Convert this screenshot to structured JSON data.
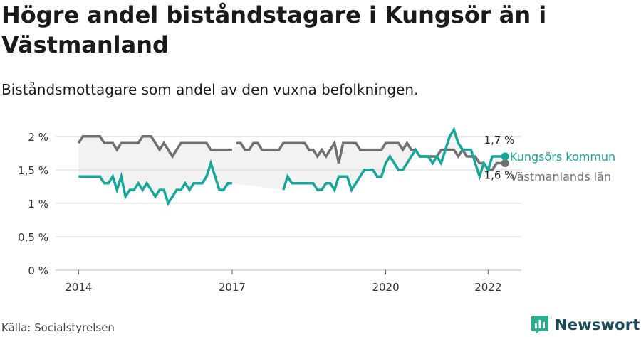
{
  "title": "Högre andel biståndstagare i Kungsör än i Västmanland",
  "subtitle": "Biståndsmottagare som andel av den vuxna befolkningen.",
  "source": "Källa: Socialstyrelsen",
  "brand": "Newsworthy",
  "colors": {
    "kungsor": "#16a79a",
    "vastmanland": "#707070",
    "band": "#f2f2f2",
    "grid": "#d9d9d9",
    "brand": "#1a4a5c",
    "brand_icon": "#2fae8f"
  },
  "chart_data": {
    "type": "line",
    "y_ticks": [
      {
        "value": 0,
        "label": "0 %"
      },
      {
        "value": 0.5,
        "label": "0,5 %"
      },
      {
        "value": 1,
        "label": "1 %"
      },
      {
        "value": 1.5,
        "label": "1,5 %"
      },
      {
        "value": 2,
        "label": "2 %"
      }
    ],
    "ylim": [
      0,
      2.2
    ],
    "x_ticks": [
      {
        "value": 2014,
        "label": "2014"
      },
      {
        "value": 2017,
        "label": "2017"
      },
      {
        "value": 2020,
        "label": "2020"
      },
      {
        "value": 2022,
        "label": "2022"
      }
    ],
    "xlim": [
      2013.55,
      2022.65
    ],
    "series": [
      {
        "name": "Kungsörs kommun",
        "color": "#16a79a",
        "end_label": "1,7 %",
        "points": [
          [
            2014.0,
            1.4
          ],
          [
            2014.083,
            1.4
          ],
          [
            2014.167,
            1.4
          ],
          [
            2014.25,
            1.4
          ],
          [
            2014.333,
            1.4
          ],
          [
            2014.417,
            1.4
          ],
          [
            2014.5,
            1.3
          ],
          [
            2014.583,
            1.3
          ],
          [
            2014.667,
            1.4
          ],
          [
            2014.75,
            1.2
          ],
          [
            2014.833,
            1.4
          ],
          [
            2014.917,
            1.1
          ],
          [
            2015.0,
            1.2
          ],
          [
            2015.083,
            1.2
          ],
          [
            2015.167,
            1.3
          ],
          [
            2015.25,
            1.2
          ],
          [
            2015.333,
            1.3
          ],
          [
            2015.417,
            1.2
          ],
          [
            2015.5,
            1.1
          ],
          [
            2015.583,
            1.2
          ],
          [
            2015.667,
            1.2
          ],
          [
            2015.75,
            1.0
          ],
          [
            2015.833,
            1.1
          ],
          [
            2015.917,
            1.2
          ],
          [
            2016.0,
            1.2
          ],
          [
            2016.083,
            1.3
          ],
          [
            2016.167,
            1.2
          ],
          [
            2016.25,
            1.3
          ],
          [
            2016.333,
            1.3
          ],
          [
            2016.417,
            1.3
          ],
          [
            2016.5,
            1.4
          ],
          [
            2016.583,
            1.6
          ],
          [
            2016.667,
            1.4
          ],
          [
            2016.75,
            1.2
          ],
          [
            2016.833,
            1.2
          ],
          [
            2016.917,
            1.3
          ],
          [
            2017.0,
            1.3
          ],
          null,
          [
            2018.0,
            1.2
          ],
          [
            2018.083,
            1.4
          ],
          [
            2018.167,
            1.3
          ],
          [
            2018.25,
            1.3
          ],
          [
            2018.333,
            1.3
          ],
          [
            2018.417,
            1.3
          ],
          [
            2018.5,
            1.3
          ],
          [
            2018.583,
            1.3
          ],
          [
            2018.667,
            1.2
          ],
          [
            2018.75,
            1.2
          ],
          [
            2018.833,
            1.3
          ],
          [
            2018.917,
            1.3
          ],
          [
            2019.0,
            1.2
          ],
          [
            2019.083,
            1.4
          ],
          [
            2019.167,
            1.4
          ],
          [
            2019.25,
            1.4
          ],
          [
            2019.333,
            1.2
          ],
          [
            2019.417,
            1.3
          ],
          [
            2019.5,
            1.4
          ],
          [
            2019.583,
            1.5
          ],
          [
            2019.667,
            1.5
          ],
          [
            2019.75,
            1.5
          ],
          [
            2019.833,
            1.4
          ],
          [
            2019.917,
            1.4
          ],
          [
            2020.0,
            1.6
          ],
          [
            2020.083,
            1.7
          ],
          [
            2020.167,
            1.6
          ],
          [
            2020.25,
            1.5
          ],
          [
            2020.333,
            1.5
          ],
          [
            2020.417,
            1.6
          ],
          [
            2020.5,
            1.7
          ],
          [
            2020.583,
            1.8
          ],
          [
            2020.667,
            1.7
          ],
          [
            2020.75,
            1.7
          ],
          [
            2020.833,
            1.7
          ],
          [
            2020.917,
            1.6
          ],
          [
            2021.0,
            1.7
          ],
          [
            2021.083,
            1.6
          ],
          [
            2021.167,
            1.8
          ],
          [
            2021.25,
            2.0
          ],
          [
            2021.333,
            2.1
          ],
          [
            2021.417,
            1.9
          ],
          [
            2021.5,
            1.8
          ],
          [
            2021.583,
            1.8
          ],
          [
            2021.667,
            1.8
          ],
          [
            2021.75,
            1.6
          ],
          [
            2021.833,
            1.4
          ],
          [
            2021.917,
            1.6
          ],
          [
            2022.0,
            1.5
          ],
          [
            2022.083,
            1.7
          ],
          [
            2022.167,
            1.7
          ],
          [
            2022.25,
            1.7
          ],
          [
            2022.333,
            1.7
          ]
        ]
      },
      {
        "name": "Västmanlands län",
        "color": "#707070",
        "end_label": "1,6 %",
        "points": [
          [
            2014.0,
            1.9
          ],
          [
            2014.083,
            2.0
          ],
          [
            2014.167,
            2.0
          ],
          [
            2014.25,
            2.0
          ],
          [
            2014.333,
            2.0
          ],
          [
            2014.417,
            2.0
          ],
          [
            2014.5,
            1.9
          ],
          [
            2014.583,
            1.9
          ],
          [
            2014.667,
            1.9
          ],
          [
            2014.75,
            1.8
          ],
          [
            2014.833,
            1.9
          ],
          [
            2014.917,
            1.9
          ],
          [
            2015.0,
            1.9
          ],
          [
            2015.083,
            1.9
          ],
          [
            2015.167,
            1.9
          ],
          [
            2015.25,
            2.0
          ],
          [
            2015.333,
            2.0
          ],
          [
            2015.417,
            2.0
          ],
          [
            2015.5,
            1.9
          ],
          [
            2015.583,
            1.8
          ],
          [
            2015.667,
            1.9
          ],
          [
            2015.75,
            1.8
          ],
          [
            2015.833,
            1.7
          ],
          [
            2015.917,
            1.8
          ],
          [
            2016.0,
            1.9
          ],
          [
            2016.083,
            1.9
          ],
          [
            2016.167,
            1.9
          ],
          [
            2016.25,
            1.9
          ],
          [
            2016.333,
            1.9
          ],
          [
            2016.417,
            1.9
          ],
          [
            2016.5,
            1.9
          ],
          [
            2016.583,
            1.8
          ],
          [
            2016.667,
            1.8
          ],
          [
            2016.75,
            1.8
          ],
          [
            2016.833,
            1.8
          ],
          [
            2016.917,
            1.8
          ],
          [
            2017.0,
            1.8
          ],
          null,
          [
            2017.083,
            1.9
          ],
          [
            2017.167,
            1.9
          ],
          [
            2017.25,
            1.8
          ],
          [
            2017.333,
            1.8
          ],
          [
            2017.417,
            1.9
          ],
          [
            2017.5,
            1.9
          ],
          [
            2017.583,
            1.8
          ],
          [
            2017.667,
            1.8
          ],
          [
            2017.75,
            1.8
          ],
          [
            2017.833,
            1.8
          ],
          [
            2017.917,
            1.8
          ],
          [
            2018.0,
            1.9
          ],
          [
            2018.083,
            1.9
          ],
          [
            2018.167,
            1.9
          ],
          [
            2018.25,
            1.9
          ],
          [
            2018.333,
            1.9
          ],
          [
            2018.417,
            1.9
          ],
          [
            2018.5,
            1.8
          ],
          [
            2018.583,
            1.8
          ],
          [
            2018.667,
            1.7
          ],
          [
            2018.75,
            1.8
          ],
          [
            2018.833,
            1.7
          ],
          [
            2018.917,
            1.8
          ],
          [
            2019.0,
            1.9
          ],
          [
            2019.083,
            1.6
          ],
          [
            2019.167,
            1.9
          ],
          [
            2019.25,
            1.9
          ],
          [
            2019.333,
            1.9
          ],
          [
            2019.417,
            1.9
          ],
          [
            2019.5,
            1.8
          ],
          [
            2019.583,
            1.8
          ],
          [
            2019.667,
            1.8
          ],
          [
            2019.75,
            1.8
          ],
          [
            2019.833,
            1.8
          ],
          [
            2019.917,
            1.8
          ],
          [
            2020.0,
            1.9
          ],
          [
            2020.083,
            1.9
          ],
          [
            2020.167,
            1.9
          ],
          [
            2020.25,
            1.9
          ],
          [
            2020.333,
            1.8
          ],
          [
            2020.417,
            1.9
          ],
          [
            2020.5,
            1.8
          ],
          [
            2020.583,
            1.8
          ],
          [
            2020.667,
            1.7
          ],
          [
            2020.75,
            1.7
          ],
          [
            2020.833,
            1.7
          ],
          [
            2020.917,
            1.7
          ],
          [
            2021.0,
            1.7
          ],
          [
            2021.083,
            1.8
          ],
          [
            2021.167,
            1.8
          ],
          [
            2021.25,
            1.8
          ],
          [
            2021.333,
            1.8
          ],
          [
            2021.417,
            1.7
          ],
          [
            2021.5,
            1.8
          ],
          [
            2021.583,
            1.7
          ],
          [
            2021.667,
            1.7
          ],
          [
            2021.75,
            1.7
          ],
          [
            2021.833,
            1.6
          ],
          [
            2021.917,
            1.6
          ],
          [
            2022.0,
            1.5
          ],
          [
            2022.083,
            1.5
          ],
          [
            2022.167,
            1.6
          ],
          [
            2022.25,
            1.6
          ],
          [
            2022.333,
            1.6
          ]
        ]
      }
    ]
  }
}
